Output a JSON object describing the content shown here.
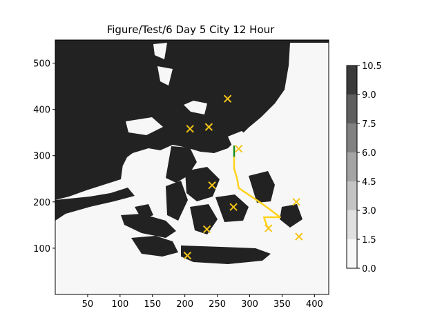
{
  "chart_data": {
    "type": "heatmap",
    "title": "Figure/Test/6 Day 5 City 12 Hour",
    "xlabel": "",
    "ylabel": "",
    "xlim": [
      0,
      422
    ],
    "ylim": [
      0,
      550
    ],
    "x_ticks": [
      50,
      100,
      150,
      200,
      250,
      300,
      350,
      400
    ],
    "y_ticks": [
      100,
      200,
      300,
      400,
      500
    ],
    "field_levels": [
      0.0,
      1.5,
      3.0,
      4.5,
      6.0,
      7.5,
      9.0,
      10.5
    ],
    "field_colors": [
      "#f7f7f7",
      "#e0e0e0",
      "#c4c4c4",
      "#a4a4a4",
      "#818181",
      "#5f5f5f",
      "#3a3a3a",
      "#222222"
    ],
    "cities": [
      {
        "x": 266,
        "y": 423
      },
      {
        "x": 208,
        "y": 358
      },
      {
        "x": 237,
        "y": 362
      },
      {
        "x": 283,
        "y": 315
      },
      {
        "x": 242,
        "y": 236
      },
      {
        "x": 275,
        "y": 189
      },
      {
        "x": 372,
        "y": 200
      },
      {
        "x": 234,
        "y": 141
      },
      {
        "x": 329,
        "y": 143
      },
      {
        "x": 376,
        "y": 125
      },
      {
        "x": 204,
        "y": 84
      }
    ],
    "routes": [
      {
        "color": "#1a8c1a",
        "points": [
          [
            276,
            320
          ],
          [
            276,
            296
          ]
        ]
      },
      {
        "color": "#ffd21a",
        "points": [
          [
            276,
            296
          ],
          [
            276,
            272
          ],
          [
            279,
            258
          ],
          [
            281,
            248
          ],
          [
            283,
            230
          ],
          [
            300,
            214
          ],
          [
            315,
            200
          ],
          [
            330,
            185
          ],
          [
            347,
            167
          ],
          [
            322,
            167
          ],
          [
            326,
            150
          ],
          [
            329,
            143
          ]
        ]
      }
    ],
    "colorbar_ticks": [
      0.0,
      1.5,
      3.0,
      4.5,
      6.0,
      7.5,
      9.0,
      10.5
    ],
    "colorbar_labels": [
      "0.0",
      "1.5",
      "3.0",
      "4.5",
      "6.0",
      "7.5",
      "9.0",
      "10.5"
    ]
  }
}
